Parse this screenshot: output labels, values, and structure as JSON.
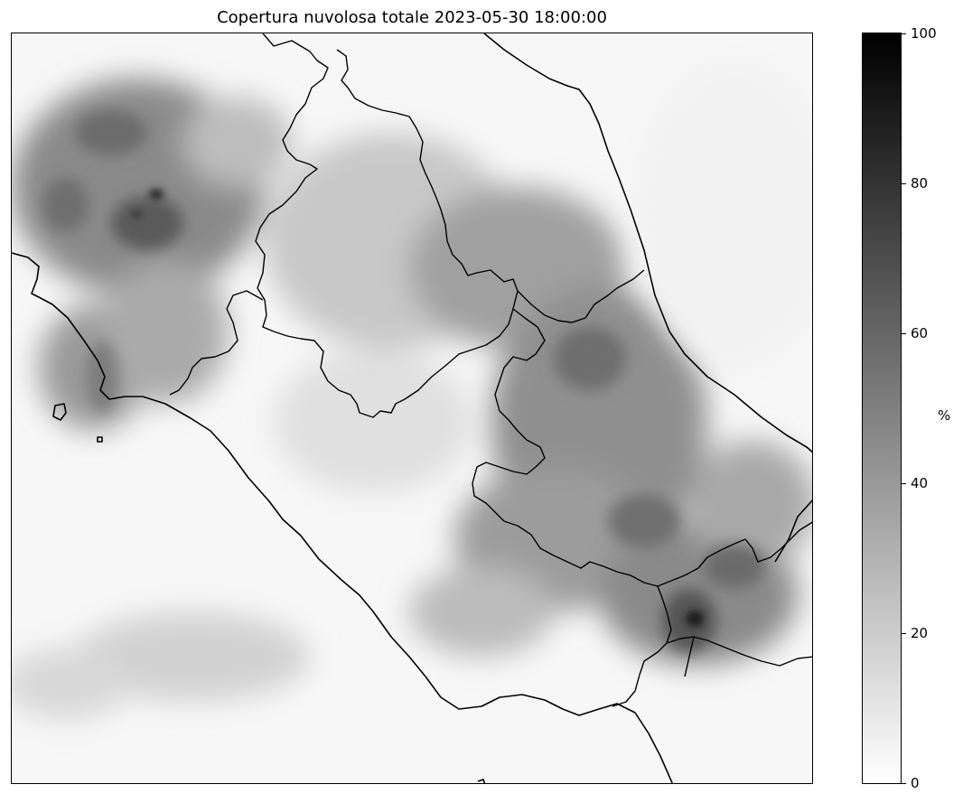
{
  "title": "Copertura nuvolosa totale 2023-05-30 18:00:00",
  "colorbar": {
    "unit_label": "%",
    "min": 0,
    "max": 100,
    "ticks": [
      {
        "value": 0,
        "label": "0"
      },
      {
        "value": 20,
        "label": "20"
      },
      {
        "value": 40,
        "label": "40"
      },
      {
        "value": 60,
        "label": "60"
      },
      {
        "value": 80,
        "label": "80"
      },
      {
        "value": 100,
        "label": "100"
      }
    ],
    "colormap": "greys",
    "low_color": "#ffffff",
    "high_color": "#000000"
  },
  "map": {
    "field": "total cloud cover",
    "overlays": [
      "coastline",
      "regional-boundaries"
    ],
    "line_color": "#000000"
  }
}
